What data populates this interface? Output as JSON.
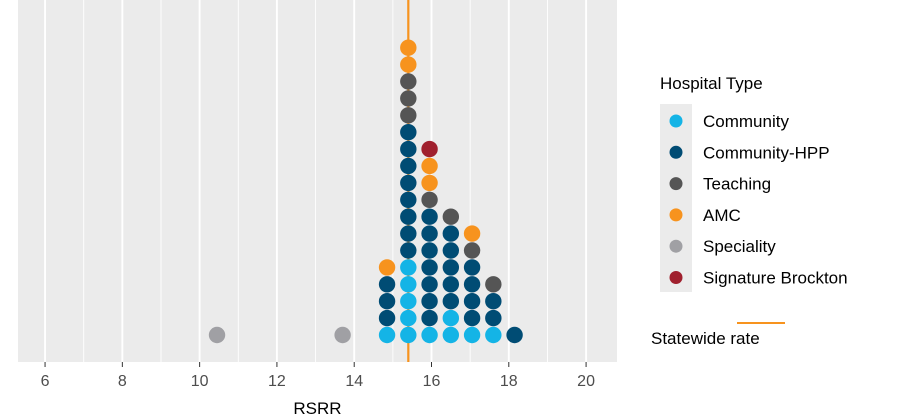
{
  "chart_data": {
    "type": "scatter",
    "subtype": "dot-plot",
    "title": "",
    "xlabel": "RSRR",
    "ylabel": "",
    "xlim": [
      5.3,
      20.8
    ],
    "x_ticks": [
      6,
      8,
      10,
      12,
      14,
      16,
      18,
      20
    ],
    "grid": true,
    "reference_line": {
      "name": "Statewide rate",
      "x": 15.4,
      "color": "#f7931e"
    },
    "legend": {
      "title": "Hospital Type",
      "position": "right",
      "entries": [
        {
          "name": "Community",
          "color": "#14b4e6"
        },
        {
          "name": "Community-HPP",
          "color": "#004c74"
        },
        {
          "name": "Teaching",
          "color": "#555555"
        },
        {
          "name": "AMC",
          "color": "#f7931e"
        },
        {
          "name": "Speciality",
          "color": "#a0a0a4"
        },
        {
          "name": "Signature Brockton",
          "color": "#a0202e"
        }
      ]
    },
    "stacks": [
      {
        "x": 10.45,
        "types": [
          "Speciality"
        ]
      },
      {
        "x": 13.7,
        "types": [
          "Speciality"
        ]
      },
      {
        "x": 14.85,
        "types": [
          "Community",
          "Community-HPP",
          "Community-HPP",
          "Community-HPP",
          "AMC"
        ]
      },
      {
        "x": 15.4,
        "types": [
          "Community",
          "Community",
          "Community",
          "Community",
          "Community",
          "Community-HPP",
          "Community-HPP",
          "Community-HPP",
          "Community-HPP",
          "Community-HPP",
          "Community-HPP",
          "Community-HPP",
          "Community-HPP",
          "Teaching",
          "Teaching",
          "Teaching",
          "AMC",
          "AMC"
        ]
      },
      {
        "x": 15.95,
        "types": [
          "Community",
          "Community-HPP",
          "Community-HPP",
          "Community-HPP",
          "Community-HPP",
          "Community-HPP",
          "Community-HPP",
          "Community-HPP",
          "Teaching",
          "AMC",
          "AMC",
          "Signature Brockton"
        ]
      },
      {
        "x": 16.5,
        "types": [
          "Community",
          "Community",
          "Community-HPP",
          "Community-HPP",
          "Community-HPP",
          "Community-HPP",
          "Community-HPP",
          "Teaching"
        ]
      },
      {
        "x": 17.05,
        "types": [
          "Community",
          "Community-HPP",
          "Community-HPP",
          "Community-HPP",
          "Community-HPP",
          "Teaching",
          "AMC"
        ]
      },
      {
        "x": 17.6,
        "types": [
          "Community",
          "Community-HPP",
          "Community-HPP",
          "Teaching"
        ]
      },
      {
        "x": 18.15,
        "types": [
          "Community-HPP"
        ]
      }
    ]
  }
}
